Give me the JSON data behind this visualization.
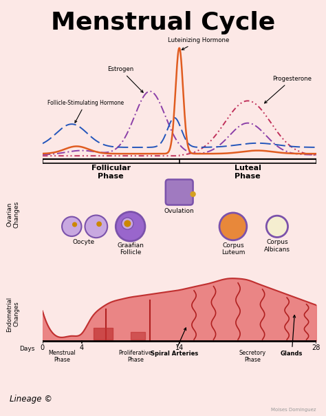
{
  "title": "Menstrual Cycle",
  "bg_color": "#fce8e6",
  "title_fontsize": 26,
  "hormone_colors": {
    "lh": "#e05c20",
    "estrogen": "#8b3fa8",
    "progesterone": "#c0305a",
    "fsh": "#2255bb"
  },
  "phase_labels": [
    "Follicular\nPhase",
    "Luteal\nPhase"
  ],
  "ovarian_labels": [
    "Oocyte",
    "Graafian\nFollicle",
    "Ovulation",
    "Corpus\nLuteum",
    "Corpus\nAlbicans"
  ],
  "bottom_phases": [
    "Menstrual\nPhase",
    "Proliferative\nPhase",
    "Secretory\nPhase"
  ],
  "day_ticks": [
    0,
    4,
    14,
    28
  ],
  "endometrial_label": "Endometrial\nChanges",
  "ovarian_label": "Ovarian\nChanges",
  "spiral_arteries_label": "Spiral Arteries",
  "glands_label": "Glands",
  "lineage_text": "Lineage ©",
  "watermark": "Moises Dominguez",
  "purple_border": "#7B52AB",
  "purple_fill": "#9966CC",
  "lt_purple": "#C8A8E0",
  "orange_fill": "#E8883A",
  "cream_fill": "#F5EED0"
}
